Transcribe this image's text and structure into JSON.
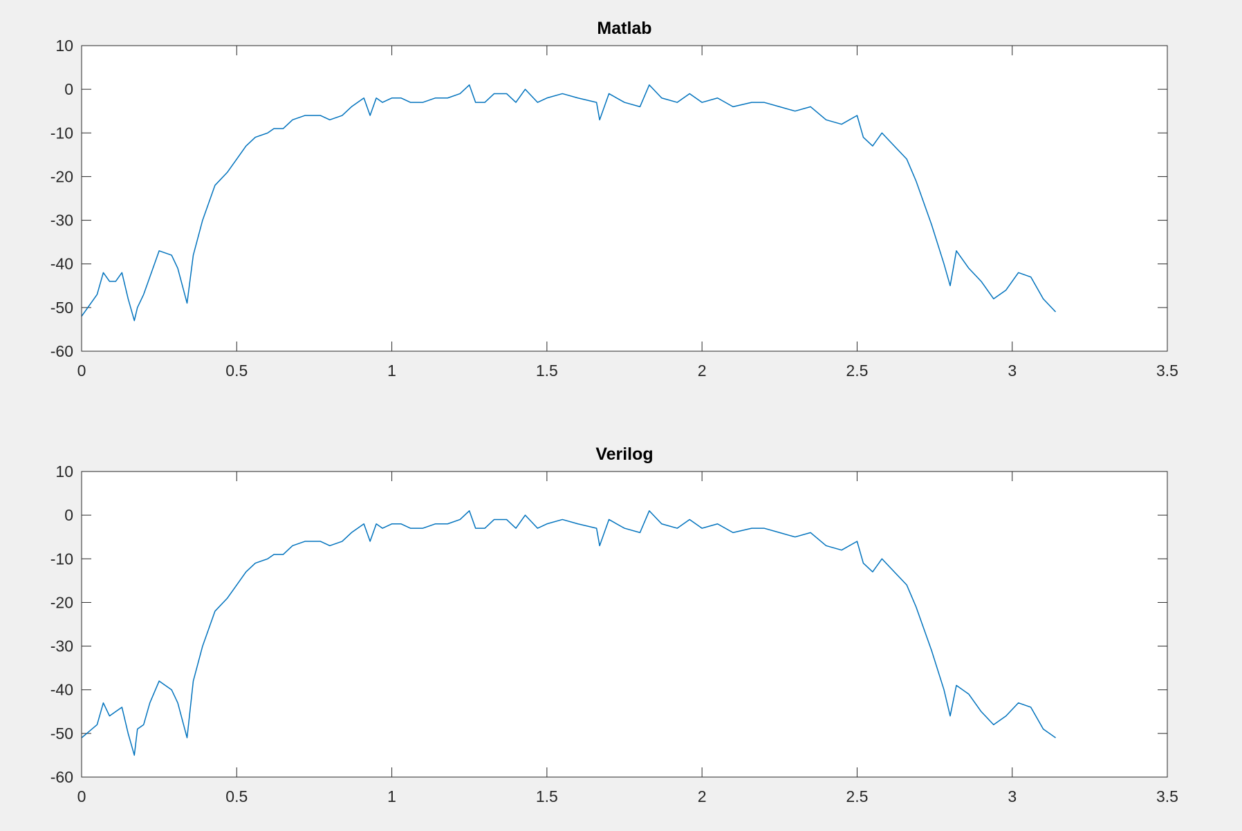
{
  "chart_data": [
    {
      "type": "line",
      "title": "Matlab",
      "xlabel": "",
      "ylabel": "",
      "xlim": [
        0,
        3.5
      ],
      "ylim": [
        -60,
        10
      ],
      "xticks": [
        0,
        0.5,
        1,
        1.5,
        2,
        2.5,
        3,
        3.5
      ],
      "yticks": [
        10,
        0,
        -10,
        -20,
        -30,
        -40,
        -50,
        -60
      ],
      "xtick_labels": [
        "0",
        "0.5",
        "1",
        "1.5",
        "2",
        "2.5",
        "3",
        "3.5"
      ],
      "ytick_labels": [
        "10",
        "0",
        "-10",
        "-20",
        "-30",
        "-40",
        "-50",
        "-60"
      ],
      "grid": false,
      "line_color": "#0072BD",
      "series": [
        {
          "x": [
            0,
            0.05,
            0.07,
            0.09,
            0.11,
            0.13,
            0.15,
            0.17,
            0.18,
            0.2,
            0.22,
            0.25,
            0.29,
            0.31,
            0.34,
            0.36,
            0.39,
            0.43,
            0.47,
            0.5,
            0.53,
            0.56,
            0.6,
            0.62,
            0.65,
            0.68,
            0.72,
            0.77,
            0.8,
            0.84,
            0.87,
            0.91,
            0.93,
            0.95,
            0.97,
            1.0,
            1.03,
            1.06,
            1.1,
            1.14,
            1.18,
            1.22,
            1.25,
            1.27,
            1.3,
            1.33,
            1.37,
            1.4,
            1.43,
            1.47,
            1.5,
            1.55,
            1.6,
            1.66,
            1.67,
            1.7,
            1.75,
            1.8,
            1.83,
            1.87,
            1.92,
            1.96,
            2.0,
            2.05,
            2.1,
            2.16,
            2.2,
            2.25,
            2.3,
            2.35,
            2.4,
            2.45,
            2.5,
            2.52,
            2.55,
            2.58,
            2.62,
            2.66,
            2.69,
            2.72,
            2.74,
            2.78,
            2.8,
            2.82,
            2.86,
            2.9,
            2.94,
            2.98,
            3.02,
            3.06,
            3.1,
            3.14
          ],
          "values": [
            -52,
            -47,
            -42,
            -44,
            -44,
            -42,
            -48,
            -53,
            -50,
            -47,
            -43,
            -37,
            -38,
            -41,
            -49,
            -38,
            -30,
            -22,
            -19,
            -16,
            -13,
            -11,
            -10,
            -9,
            -9,
            -7,
            -6,
            -6,
            -7,
            -6,
            -4,
            -2,
            -6,
            -2,
            -3,
            -2,
            -2,
            -3,
            -3,
            -2,
            -2,
            -1,
            1,
            -3,
            -3,
            -1,
            -1,
            -3,
            0,
            -3,
            -2,
            -1,
            -2,
            -3,
            -7,
            -1,
            -3,
            -4,
            1,
            -2,
            -3,
            -1,
            -3,
            -2,
            -4,
            -3,
            -3,
            -4,
            -5,
            -4,
            -7,
            -8,
            -6,
            -11,
            -13,
            -10,
            -13,
            -16,
            -21,
            -27,
            -31,
            -40,
            -45,
            -37,
            -41,
            -44,
            -48,
            -46,
            -42,
            -43,
            -48,
            -51
          ]
        }
      ]
    },
    {
      "type": "line",
      "title": "Verilog",
      "xlabel": "",
      "ylabel": "",
      "xlim": [
        0,
        3.5
      ],
      "ylim": [
        -60,
        10
      ],
      "xticks": [
        0,
        0.5,
        1,
        1.5,
        2,
        2.5,
        3,
        3.5
      ],
      "yticks": [
        10,
        0,
        -10,
        -20,
        -30,
        -40,
        -50,
        -60
      ],
      "xtick_labels": [
        "0",
        "0.5",
        "1",
        "1.5",
        "2",
        "2.5",
        "3",
        "3.5"
      ],
      "ytick_labels": [
        "10",
        "0",
        "-10",
        "-20",
        "-30",
        "-40",
        "-50",
        "-60"
      ],
      "grid": false,
      "line_color": "#0072BD",
      "series": [
        {
          "x": [
            0,
            0.05,
            0.07,
            0.09,
            0.11,
            0.13,
            0.15,
            0.17,
            0.18,
            0.2,
            0.22,
            0.25,
            0.29,
            0.31,
            0.34,
            0.36,
            0.39,
            0.43,
            0.47,
            0.5,
            0.53,
            0.56,
            0.6,
            0.62,
            0.65,
            0.68,
            0.72,
            0.77,
            0.8,
            0.84,
            0.87,
            0.91,
            0.93,
            0.95,
            0.97,
            1.0,
            1.03,
            1.06,
            1.1,
            1.14,
            1.18,
            1.22,
            1.25,
            1.27,
            1.3,
            1.33,
            1.37,
            1.4,
            1.43,
            1.47,
            1.5,
            1.55,
            1.6,
            1.66,
            1.67,
            1.7,
            1.75,
            1.8,
            1.83,
            1.87,
            1.92,
            1.96,
            2.0,
            2.05,
            2.1,
            2.16,
            2.2,
            2.25,
            2.3,
            2.35,
            2.4,
            2.45,
            2.5,
            2.52,
            2.55,
            2.58,
            2.62,
            2.66,
            2.69,
            2.72,
            2.74,
            2.78,
            2.8,
            2.82,
            2.86,
            2.9,
            2.94,
            2.98,
            3.02,
            3.06,
            3.1,
            3.14
          ],
          "values": [
            -51,
            -48,
            -43,
            -46,
            -45,
            -44,
            -50,
            -55,
            -49,
            -48,
            -43,
            -38,
            -40,
            -43,
            -51,
            -38,
            -30,
            -22,
            -19,
            -16,
            -13,
            -11,
            -10,
            -9,
            -9,
            -7,
            -6,
            -6,
            -7,
            -6,
            -4,
            -2,
            -6,
            -2,
            -3,
            -2,
            -2,
            -3,
            -3,
            -2,
            -2,
            -1,
            1,
            -3,
            -3,
            -1,
            -1,
            -3,
            0,
            -3,
            -2,
            -1,
            -2,
            -3,
            -7,
            -1,
            -3,
            -4,
            1,
            -2,
            -3,
            -1,
            -3,
            -2,
            -4,
            -3,
            -3,
            -4,
            -5,
            -4,
            -7,
            -8,
            -6,
            -11,
            -13,
            -10,
            -13,
            -16,
            -21,
            -27,
            -31,
            -40,
            -46,
            -39,
            -41,
            -45,
            -48,
            -46,
            -43,
            -44,
            -49,
            -51
          ]
        }
      ]
    }
  ]
}
